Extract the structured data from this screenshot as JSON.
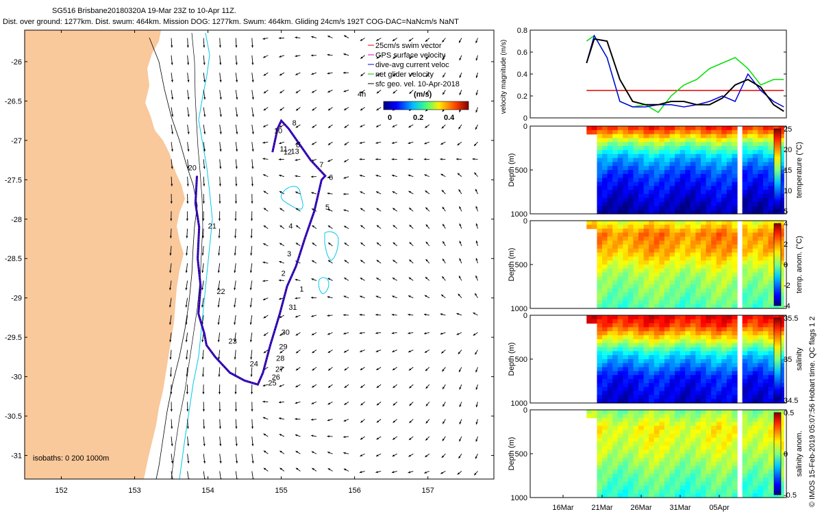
{
  "header": {
    "line1": "SG516 Brisbane20180320A 19-Mar 23Z to 10-Apr 11Z.",
    "line2": "Dist. over ground: 1277km. Dist. swum: 464km. Mission DOG: 1277km. Swum: 464km. Gliding 24cm/s 192T COG-DAC=NaNcm/s NaNT"
  },
  "footer_credit": "© IMOS 15-Feb-2019 05:07:56 Hobart time. QC flags 1  2",
  "colors": {
    "land": "#f9c89b",
    "track_red": "#e00000",
    "track_blue": "#0000e0",
    "isobath_cyan": "#00c8e8",
    "net_velocity_green": "#00e000"
  },
  "chart_data": [
    {
      "type": "scatter",
      "name": "map",
      "xlim": [
        151.5,
        157.9
      ],
      "ylim": [
        -31.3,
        -25.6
      ],
      "x_ticks": [
        152,
        153,
        154,
        155,
        156,
        157
      ],
      "y_ticks": [
        -26,
        -26.5,
        -27,
        -27.5,
        -28,
        -28.5,
        -29,
        -29.5,
        -30,
        -30.5,
        -31
      ],
      "legend": [
        {
          "label": "25cm/s swim vector",
          "color": "#e00000"
        },
        {
          "label": "GPS surface velocity",
          "color": "#d000d0"
        },
        {
          "label": "dive-avg current veloc",
          "color": "#0000e0"
        },
        {
          "label": "net glider velocity",
          "color": "#00c000"
        },
        {
          "label": "sfc geo. vel. 10-Apr-2018",
          "color": "#000000"
        }
      ],
      "legend_extra": "4h",
      "colorbar": {
        "title": "(m/s)",
        "ticks": [
          "0",
          "0.2",
          "0.4"
        ]
      },
      "isobath_label": "isobaths: 0   200   1000m",
      "track": {
        "lon": [
          153.85,
          153.83,
          153.88,
          153.86,
          153.9,
          153.87,
          153.95,
          153.98,
          154.1,
          154.3,
          154.5,
          154.68,
          154.75,
          154.85,
          154.98,
          155.08,
          155.2,
          155.32,
          155.45,
          155.55,
          155.6,
          155.4,
          155.25,
          155.1,
          155.0,
          154.95,
          154.88
        ],
        "lat": [
          -27.45,
          -27.8,
          -28.1,
          -28.5,
          -28.85,
          -29.2,
          -29.45,
          -29.6,
          -29.75,
          -29.95,
          -30.05,
          -30.1,
          -29.95,
          -29.6,
          -29.2,
          -28.85,
          -28.6,
          -28.25,
          -27.9,
          -27.5,
          -27.45,
          -27.25,
          -27.05,
          -26.85,
          -26.75,
          -26.85,
          -27.15
        ]
      },
      "day_labels": [
        {
          "text": "1",
          "lon": 155.25,
          "lat": -28.92
        },
        {
          "text": "2",
          "lon": 155.0,
          "lat": -28.72
        },
        {
          "text": "3",
          "lon": 155.08,
          "lat": -28.47
        },
        {
          "text": "4",
          "lon": 155.1,
          "lat": -28.12
        },
        {
          "text": "5",
          "lon": 155.6,
          "lat": -27.88
        },
        {
          "text": "6",
          "lon": 155.65,
          "lat": -27.5
        },
        {
          "text": "7",
          "lon": 155.52,
          "lat": -27.34
        },
        {
          "text": "8",
          "lon": 155.2,
          "lat": -27.09
        },
        {
          "text": "8",
          "lon": 155.15,
          "lat": -26.81
        },
        {
          "text": "10",
          "lon": 154.9,
          "lat": -26.91
        },
        {
          "text": "11",
          "lon": 154.98,
          "lat": -27.14
        },
        {
          "text": "12",
          "lon": 155.03,
          "lat": -27.18
        },
        {
          "text": "13",
          "lon": 155.13,
          "lat": -27.17
        },
        {
          "text": "20",
          "lon": 153.73,
          "lat": -27.38
        },
        {
          "text": "21",
          "lon": 154.0,
          "lat": -28.12
        },
        {
          "text": "22",
          "lon": 154.12,
          "lat": -28.95
        },
        {
          "text": "23",
          "lon": 154.28,
          "lat": -29.58
        },
        {
          "text": "24",
          "lon": 154.57,
          "lat": -29.87
        },
        {
          "text": "25",
          "lon": 154.82,
          "lat": -30.11
        },
        {
          "text": "26",
          "lon": 154.87,
          "lat": -30.04
        },
        {
          "text": "27",
          "lon": 154.92,
          "lat": -29.94
        },
        {
          "text": "28",
          "lon": 154.93,
          "lat": -29.8
        },
        {
          "text": "29",
          "lon": 154.97,
          "lat": -29.65
        },
        {
          "text": "30",
          "lon": 155.0,
          "lat": -29.47
        },
        {
          "text": "31",
          "lon": 155.1,
          "lat": -29.15
        }
      ]
    },
    {
      "type": "line",
      "name": "velocity",
      "ylabel": "velocity magnitude (m/s)",
      "ylim": [
        0,
        0.8
      ],
      "y_ticks": [
        "0",
        "0.2",
        "0.4",
        "0.6",
        "0.8"
      ],
      "series": [
        {
          "name": "swim speed",
          "color": "#e00000",
          "x": [
            0.22,
            0.99
          ],
          "y": [
            0.25,
            0.25
          ]
        },
        {
          "name": "net glider velocity",
          "color": "#00e000",
          "x": [
            0.22,
            0.25,
            0.3,
            0.35,
            0.4,
            0.45,
            0.5,
            0.55,
            0.6,
            0.65,
            0.7,
            0.75,
            0.8,
            0.85,
            0.9,
            0.95,
            0.99
          ],
          "y": [
            0.7,
            0.75,
            0.55,
            0.15,
            0.1,
            0.12,
            0.05,
            0.2,
            0.3,
            0.35,
            0.45,
            0.5,
            0.55,
            0.45,
            0.3,
            0.35,
            0.35
          ]
        },
        {
          "name": "dive-avg current",
          "color": "#0000e0",
          "x": [
            0.22,
            0.25,
            0.3,
            0.35,
            0.4,
            0.45,
            0.5,
            0.55,
            0.6,
            0.65,
            0.7,
            0.75,
            0.8,
            0.85,
            0.9,
            0.95,
            0.99
          ],
          "y": [
            0.5,
            0.75,
            0.55,
            0.15,
            0.1,
            0.1,
            0.12,
            0.12,
            0.1,
            0.12,
            0.15,
            0.2,
            0.15,
            0.4,
            0.25,
            0.15,
            0.1
          ]
        },
        {
          "name": "sfc geo vel",
          "color": "#000000",
          "x": [
            0.22,
            0.25,
            0.3,
            0.35,
            0.4,
            0.45,
            0.5,
            0.55,
            0.6,
            0.65,
            0.7,
            0.75,
            0.8,
            0.85,
            0.9,
            0.95,
            0.99
          ],
          "y": [
            0.5,
            0.72,
            0.7,
            0.35,
            0.15,
            0.12,
            0.12,
            0.15,
            0.15,
            0.12,
            0.12,
            0.18,
            0.3,
            0.35,
            0.28,
            0.12,
            0.06
          ]
        }
      ]
    },
    {
      "type": "heatmap",
      "name": "temperature",
      "ylabel": "Depth (m)",
      "y_ticks": [
        "0",
        "500",
        "1000"
      ],
      "cb_label": "temperature (°C)",
      "cb_ticks": [
        "25",
        "20",
        "15",
        "10",
        "5"
      ],
      "palette": "jet",
      "layers": [
        [
          0.0,
          0.86
        ],
        [
          0.08,
          0.74
        ],
        [
          0.2,
          0.52
        ],
        [
          0.35,
          0.32
        ],
        [
          0.55,
          0.18
        ],
        [
          1.0,
          0.03
        ]
      ]
    },
    {
      "type": "heatmap",
      "name": "temp_anomaly",
      "ylabel": "Depth (m)",
      "y_ticks": [
        "0",
        "500",
        "1000"
      ],
      "cb_label": "temp. anom. (°C)",
      "cb_ticks": [
        "4",
        "2",
        "0",
        "-2",
        "-4"
      ],
      "palette": "jet",
      "layers": [
        [
          0.0,
          0.6
        ],
        [
          0.15,
          0.75
        ],
        [
          0.35,
          0.7
        ],
        [
          0.6,
          0.55
        ],
        [
          1.0,
          0.45
        ]
      ]
    },
    {
      "type": "heatmap",
      "name": "salinity",
      "ylabel": "Depth (m)",
      "y_ticks": [
        "0",
        "500",
        "1000"
      ],
      "cb_label": "salinity",
      "cb_ticks": [
        "35.5",
        "35",
        "34.5"
      ],
      "palette": "jet",
      "layers": [
        [
          0.0,
          0.9
        ],
        [
          0.12,
          0.82
        ],
        [
          0.3,
          0.58
        ],
        [
          0.45,
          0.35
        ],
        [
          0.7,
          0.15
        ],
        [
          1.0,
          0.08
        ]
      ]
    },
    {
      "type": "heatmap",
      "name": "salinity_anomaly",
      "ylabel": "Depth (m)",
      "y_ticks": [
        "0",
        "500",
        "1000"
      ],
      "cb_label": "salinity anom.",
      "cb_ticks": [
        "0.5",
        "0",
        "-0.5"
      ],
      "palette": "jet",
      "layers": [
        [
          0.0,
          0.5
        ],
        [
          0.2,
          0.62
        ],
        [
          0.45,
          0.58
        ],
        [
          0.75,
          0.48
        ],
        [
          1.0,
          0.42
        ]
      ]
    }
  ],
  "time_axis": {
    "ticks": [
      "16Mar",
      "21Mar",
      "26Mar",
      "31Mar",
      "05Apr"
    ]
  }
}
